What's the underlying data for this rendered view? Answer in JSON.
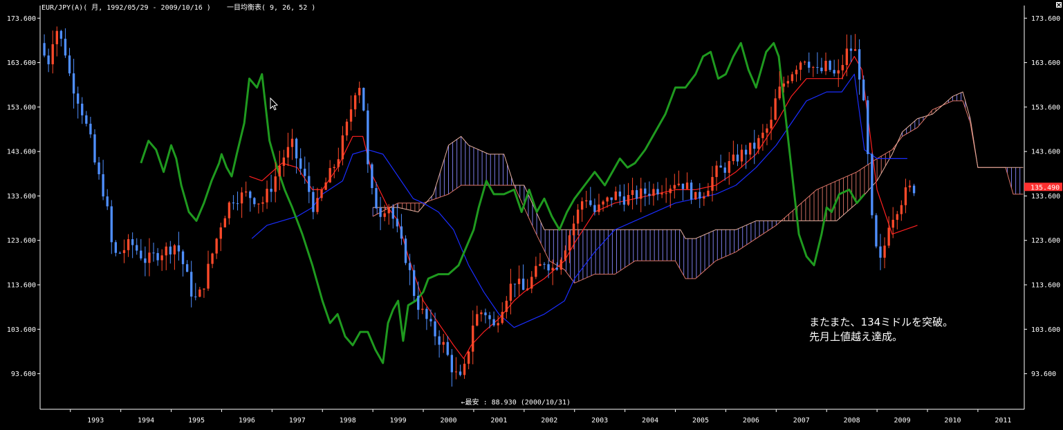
{
  "header": {
    "symbol_info": "EUR/JPY(A)( 月, 1992/05/29 - 2009/10/16 )",
    "indicator_info": "一目均衡表( 9, 26, 52 )"
  },
  "annotation": {
    "line1": "またまた、134ミドルを突破。",
    "line2": "先月上値越え達成。"
  },
  "low_marker": {
    "text": "←最安 : 88.930 (2000/10/31)",
    "value": 88.93,
    "date": 2000.83
  },
  "current_price": {
    "label": "135.490",
    "value": 135.49,
    "color": "#ff3030"
  },
  "chart_data": {
    "type": "candlestick",
    "title": "",
    "xlabel": "",
    "ylabel": "",
    "x_range": [
      1992.4,
      2011.92
    ],
    "ylim": [
      85.6,
      175.2
    ],
    "y_ticks": [
      93.6,
      103.6,
      113.6,
      123.6,
      133.6,
      143.6,
      153.6,
      163.6,
      173.6
    ],
    "y_tick_labels": [
      "93.600",
      "103.600",
      "113.600",
      "123.600",
      "133.600",
      "143.600",
      "153.600",
      "163.600",
      "173.600"
    ],
    "x_ticks": [
      1993,
      1994,
      1995,
      1996,
      1997,
      1998,
      1999,
      2000,
      2001,
      2002,
      2003,
      2004,
      2005,
      2006,
      2007,
      2008,
      2009,
      2010,
      2011
    ],
    "x_tick_labels": [
      "1993",
      "1994",
      "1995",
      "1996",
      "1997",
      "1998",
      "1999",
      "2000",
      "2001",
      "2002",
      "2003",
      "2004",
      "2005",
      "2006",
      "2007",
      "2008",
      "2009",
      "2010",
      "2011"
    ],
    "grid": false,
    "colors": {
      "up": "#ff4a2a",
      "down": "#4f8fff",
      "tenkan": "#ff2020",
      "kijun": "#1a2dff",
      "chikou": "#1f9a1f",
      "kumo_bull": "#e0776a",
      "kumo_bear": "#8a8aff"
    },
    "close_anchors": [
      [
        1992.4,
        168
      ],
      [
        1992.55,
        163
      ],
      [
        1992.7,
        172
      ],
      [
        1992.9,
        166
      ],
      [
        1993.0,
        160
      ],
      [
        1993.2,
        154
      ],
      [
        1993.4,
        146
      ],
      [
        1993.5,
        140
      ],
      [
        1993.7,
        133
      ],
      [
        1993.85,
        120
      ],
      [
        1994.0,
        121
      ],
      [
        1994.2,
        123
      ],
      [
        1994.5,
        119
      ],
      [
        1994.8,
        121
      ],
      [
        1995.0,
        122
      ],
      [
        1995.1,
        123
      ],
      [
        1995.3,
        116
      ],
      [
        1995.45,
        110
      ],
      [
        1995.6,
        112
      ],
      [
        1995.8,
        120
      ],
      [
        1996.0,
        128
      ],
      [
        1996.2,
        133
      ],
      [
        1996.5,
        134
      ],
      [
        1996.8,
        132
      ],
      [
        1997.0,
        136
      ],
      [
        1997.2,
        142
      ],
      [
        1997.4,
        145
      ],
      [
        1997.55,
        140
      ],
      [
        1997.7,
        136
      ],
      [
        1997.85,
        130
      ],
      [
        1998.0,
        135
      ],
      [
        1998.3,
        142
      ],
      [
        1998.5,
        150
      ],
      [
        1998.7,
        160
      ],
      [
        1998.8,
        156
      ],
      [
        1998.9,
        140
      ],
      [
        1999.0,
        133
      ],
      [
        1999.15,
        130
      ],
      [
        1999.3,
        132
      ],
      [
        1999.5,
        125
      ],
      [
        1999.7,
        118
      ],
      [
        1999.85,
        110
      ],
      [
        2000.0,
        107
      ],
      [
        2000.2,
        103
      ],
      [
        2000.4,
        100
      ],
      [
        2000.6,
        94
      ],
      [
        2000.75,
        92
      ],
      [
        2000.85,
        96
      ],
      [
        2001.0,
        106
      ],
      [
        2001.2,
        108
      ],
      [
        2001.4,
        104
      ],
      [
        2001.6,
        110
      ],
      [
        2001.8,
        115
      ],
      [
        2002.0,
        112
      ],
      [
        2002.2,
        116
      ],
      [
        2002.4,
        119
      ],
      [
        2002.6,
        117
      ],
      [
        2002.8,
        122
      ],
      [
        2003.0,
        128
      ],
      [
        2003.2,
        134
      ],
      [
        2003.4,
        130
      ],
      [
        2003.6,
        132
      ],
      [
        2003.8,
        134
      ],
      [
        2004.0,
        133
      ],
      [
        2004.3,
        134
      ],
      [
        2004.6,
        135
      ],
      [
        2004.9,
        136
      ],
      [
        2005.0,
        137
      ],
      [
        2005.2,
        136
      ],
      [
        2005.4,
        133
      ],
      [
        2005.6,
        135
      ],
      [
        2005.8,
        139
      ],
      [
        2006.0,
        140
      ],
      [
        2006.3,
        143
      ],
      [
        2006.6,
        145
      ],
      [
        2006.9,
        150
      ],
      [
        2007.0,
        156
      ],
      [
        2007.2,
        160
      ],
      [
        2007.4,
        163
      ],
      [
        2007.55,
        165
      ],
      [
        2007.7,
        163
      ],
      [
        2007.85,
        161
      ],
      [
        2008.0,
        163
      ],
      [
        2008.2,
        160
      ],
      [
        2008.4,
        166
      ],
      [
        2008.55,
        167
      ],
      [
        2008.7,
        158
      ],
      [
        2008.8,
        145
      ],
      [
        2008.9,
        128
      ],
      [
        2009.0,
        120
      ],
      [
        2009.1,
        118
      ],
      [
        2009.2,
        127
      ],
      [
        2009.3,
        129
      ],
      [
        2009.45,
        132
      ],
      [
        2009.6,
        135
      ],
      [
        2009.79,
        135.49
      ]
    ],
    "tenkan_anchors": [
      [
        1996.55,
        138
      ],
      [
        1996.8,
        137
      ],
      [
        1997.0,
        139
      ],
      [
        1997.2,
        141
      ],
      [
        1997.5,
        140
      ],
      [
        1997.8,
        135
      ],
      [
        1998.0,
        135
      ],
      [
        1998.3,
        140
      ],
      [
        1998.6,
        147
      ],
      [
        1998.8,
        147
      ],
      [
        1999.0,
        138
      ],
      [
        1999.3,
        131
      ],
      [
        1999.5,
        128
      ],
      [
        1999.7,
        120
      ],
      [
        2000.0,
        110
      ],
      [
        2000.3,
        105
      ],
      [
        2000.6,
        100
      ],
      [
        2000.8,
        97
      ],
      [
        2000.95,
        100
      ],
      [
        2001.2,
        103
      ],
      [
        2001.5,
        106
      ],
      [
        2001.8,
        110
      ],
      [
        2002.0,
        112
      ],
      [
        2002.4,
        115
      ],
      [
        2002.8,
        119
      ],
      [
        2003.0,
        123
      ],
      [
        2003.4,
        130
      ],
      [
        2003.8,
        132
      ],
      [
        2004.2,
        133
      ],
      [
        2004.6,
        134
      ],
      [
        2005.0,
        135
      ],
      [
        2005.4,
        135
      ],
      [
        2005.8,
        136
      ],
      [
        2006.2,
        139
      ],
      [
        2006.6,
        143
      ],
      [
        2007.0,
        150
      ],
      [
        2007.3,
        156
      ],
      [
        2007.6,
        160
      ],
      [
        2008.0,
        160
      ],
      [
        2008.3,
        160
      ],
      [
        2008.55,
        165
      ],
      [
        2008.7,
        162
      ],
      [
        2009.0,
        135
      ],
      [
        2009.3,
        125
      ],
      [
        2009.8,
        127
      ]
    ],
    "kijun_anchors": [
      [
        1996.6,
        124
      ],
      [
        1996.9,
        127
      ],
      [
        1997.2,
        128
      ],
      [
        1997.5,
        129
      ],
      [
        1997.8,
        131
      ],
      [
        1998.0,
        134
      ],
      [
        1998.4,
        137
      ],
      [
        1998.6,
        143
      ],
      [
        1998.9,
        144
      ],
      [
        1999.2,
        143
      ],
      [
        1999.5,
        138
      ],
      [
        1999.8,
        133
      ],
      [
        2000.0,
        132
      ],
      [
        2000.3,
        130
      ],
      [
        2000.6,
        126
      ],
      [
        2000.9,
        118
      ],
      [
        2001.2,
        112
      ],
      [
        2001.5,
        107
      ],
      [
        2001.8,
        104
      ],
      [
        2002.0,
        105
      ],
      [
        2002.4,
        107
      ],
      [
        2002.8,
        110
      ],
      [
        2003.0,
        115
      ],
      [
        2003.4,
        121
      ],
      [
        2003.8,
        126
      ],
      [
        2004.2,
        128
      ],
      [
        2004.6,
        130
      ],
      [
        2005.0,
        132
      ],
      [
        2005.4,
        133
      ],
      [
        2005.8,
        134
      ],
      [
        2006.2,
        136
      ],
      [
        2006.6,
        140
      ],
      [
        2007.0,
        145
      ],
      [
        2007.3,
        150
      ],
      [
        2007.6,
        155
      ],
      [
        2008.0,
        157
      ],
      [
        2008.3,
        157
      ],
      [
        2008.55,
        161
      ],
      [
        2008.75,
        144
      ],
      [
        2009.0,
        142
      ],
      [
        2009.6,
        142
      ]
    ],
    "chikou_anchors": [
      [
        1994.4,
        141
      ],
      [
        1994.55,
        146
      ],
      [
        1994.7,
        144
      ],
      [
        1994.85,
        139
      ],
      [
        1995.0,
        145
      ],
      [
        1995.1,
        142
      ],
      [
        1995.2,
        136
      ],
      [
        1995.35,
        130
      ],
      [
        1995.5,
        128
      ],
      [
        1995.65,
        132
      ],
      [
        1995.8,
        137
      ],
      [
        1995.95,
        141
      ],
      [
        1996.0,
        143
      ],
      [
        1996.1,
        140
      ],
      [
        1996.2,
        138
      ],
      [
        1996.3,
        143
      ],
      [
        1996.45,
        150
      ],
      [
        1996.55,
        160
      ],
      [
        1996.7,
        158
      ],
      [
        1996.8,
        161
      ],
      [
        1996.95,
        146
      ],
      [
        1997.1,
        140
      ],
      [
        1997.25,
        135
      ],
      [
        1997.4,
        131
      ],
      [
        1997.6,
        125
      ],
      [
        1997.8,
        118
      ],
      [
        1998.0,
        110
      ],
      [
        1998.15,
        105
      ],
      [
        1998.3,
        107
      ],
      [
        1998.45,
        102
      ],
      [
        1998.6,
        100
      ],
      [
        1998.75,
        103
      ],
      [
        1998.9,
        103
      ],
      [
        1999.05,
        99
      ],
      [
        1999.2,
        96
      ],
      [
        1999.3,
        105
      ],
      [
        1999.4,
        108
      ],
      [
        1999.5,
        110
      ],
      [
        1999.6,
        101
      ],
      [
        1999.7,
        109
      ],
      [
        1999.85,
        110
      ],
      [
        2000.0,
        112
      ],
      [
        2000.1,
        115
      ],
      [
        2000.3,
        116
      ],
      [
        2000.5,
        116
      ],
      [
        2000.7,
        118
      ],
      [
        2000.85,
        122
      ],
      [
        2001.0,
        126
      ],
      [
        2001.1,
        131
      ],
      [
        2001.25,
        137
      ],
      [
        2001.4,
        134
      ],
      [
        2001.6,
        134
      ],
      [
        2001.8,
        135
      ],
      [
        2001.95,
        130
      ],
      [
        2002.1,
        135
      ],
      [
        2002.25,
        130
      ],
      [
        2002.4,
        133
      ],
      [
        2002.55,
        129
      ],
      [
        2002.7,
        126
      ],
      [
        2002.85,
        130
      ],
      [
        2003.0,
        133
      ],
      [
        2003.2,
        136
      ],
      [
        2003.4,
        139
      ],
      [
        2003.6,
        136
      ],
      [
        2003.75,
        139
      ],
      [
        2003.9,
        142
      ],
      [
        2004.05,
        140
      ],
      [
        2004.2,
        141
      ],
      [
        2004.4,
        144
      ],
      [
        2004.6,
        148
      ],
      [
        2004.8,
        152
      ],
      [
        2005.0,
        158
      ],
      [
        2005.2,
        158
      ],
      [
        2005.4,
        161
      ],
      [
        2005.55,
        165
      ],
      [
        2005.7,
        166
      ],
      [
        2005.85,
        160
      ],
      [
        2006.0,
        161
      ],
      [
        2006.15,
        165
      ],
      [
        2006.3,
        168
      ],
      [
        2006.45,
        162
      ],
      [
        2006.6,
        158
      ],
      [
        2006.8,
        166
      ],
      [
        2006.95,
        168
      ],
      [
        2007.05,
        165
      ],
      [
        2007.25,
        145
      ],
      [
        2007.45,
        125
      ],
      [
        2007.6,
        120
      ],
      [
        2007.75,
        118
      ],
      [
        2007.9,
        125
      ],
      [
        2008.0,
        131
      ],
      [
        2008.1,
        130
      ],
      [
        2008.25,
        134
      ],
      [
        2008.45,
        135
      ],
      [
        2008.6,
        132
      ],
      [
        2008.75,
        134
      ]
    ],
    "span_a_anchors": [
      [
        1999.0,
        129
      ],
      [
        1999.5,
        132
      ],
      [
        2000.0,
        132
      ],
      [
        2000.5,
        134
      ],
      [
        2000.75,
        136
      ],
      [
        2001.0,
        136
      ],
      [
        2001.3,
        136
      ],
      [
        2001.6,
        136
      ],
      [
        2001.8,
        136
      ],
      [
        2002.0,
        131
      ],
      [
        2002.2,
        126
      ],
      [
        2002.5,
        119
      ],
      [
        2002.8,
        117
      ],
      [
        2003.0,
        114
      ],
      [
        2003.4,
        116
      ],
      [
        2003.8,
        116
      ],
      [
        2004.2,
        119
      ],
      [
        2004.6,
        119
      ],
      [
        2005.0,
        119
      ],
      [
        2005.2,
        115
      ],
      [
        2005.4,
        115
      ],
      [
        2005.8,
        119
      ],
      [
        2006.2,
        121
      ],
      [
        2006.6,
        124
      ],
      [
        2007.0,
        127
      ],
      [
        2007.4,
        131
      ],
      [
        2007.8,
        135
      ],
      [
        2008.2,
        137
      ],
      [
        2008.6,
        139
      ],
      [
        2009.0,
        142
      ],
      [
        2009.3,
        144
      ],
      [
        2009.5,
        147
      ],
      [
        2009.8,
        149
      ],
      [
        2010.1,
        153
      ],
      [
        2010.5,
        155
      ],
      [
        2010.7,
        155
      ],
      [
        2010.85,
        150
      ],
      [
        2011.0,
        140
      ],
      [
        2011.3,
        140
      ],
      [
        2011.55,
        140
      ],
      [
        2011.7,
        134
      ],
      [
        2011.9,
        134
      ]
    ],
    "span_b_anchors": [
      [
        1999.0,
        131
      ],
      [
        1999.5,
        131
      ],
      [
        1999.9,
        130
      ],
      [
        2000.2,
        134
      ],
      [
        2000.5,
        145
      ],
      [
        2000.75,
        147
      ],
      [
        2000.9,
        145
      ],
      [
        2001.3,
        143
      ],
      [
        2001.6,
        143
      ],
      [
        2001.8,
        136
      ],
      [
        2002.0,
        136
      ],
      [
        2002.4,
        126
      ],
      [
        2002.8,
        126
      ],
      [
        2003.0,
        126
      ],
      [
        2003.4,
        126
      ],
      [
        2003.8,
        126
      ],
      [
        2004.2,
        126
      ],
      [
        2004.6,
        126
      ],
      [
        2005.0,
        126
      ],
      [
        2005.1,
        126
      ],
      [
        2005.2,
        124
      ],
      [
        2005.4,
        124
      ],
      [
        2005.8,
        126
      ],
      [
        2006.2,
        126
      ],
      [
        2006.6,
        128
      ],
      [
        2007.0,
        128
      ],
      [
        2007.4,
        128
      ],
      [
        2007.8,
        128
      ],
      [
        2008.2,
        128
      ],
      [
        2008.6,
        132
      ],
      [
        2009.0,
        137
      ],
      [
        2009.3,
        143
      ],
      [
        2009.5,
        148
      ],
      [
        2009.8,
        151
      ],
      [
        2010.1,
        152
      ],
      [
        2010.5,
        156
      ],
      [
        2010.7,
        157
      ],
      [
        2010.85,
        151
      ],
      [
        2011.0,
        140
      ],
      [
        2011.3,
        140
      ],
      [
        2011.55,
        140
      ],
      [
        2011.7,
        140
      ],
      [
        2011.9,
        140
      ]
    ]
  }
}
